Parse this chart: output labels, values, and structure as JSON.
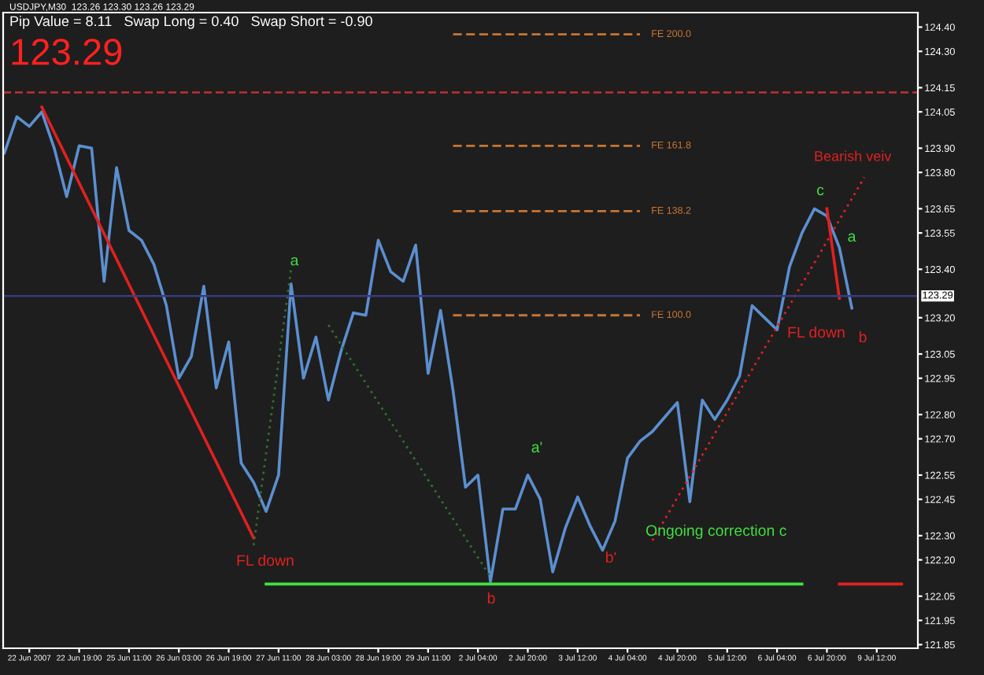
{
  "chart_data": {
    "type": "line",
    "title": "USDJPY,M30  123.26 123.30 123.26 123.29",
    "subtitle": "Pip Value = 8.11   Swap Long = 0.40   Swap Short = -0.90",
    "categories": [
      null,
      null,
      "22 Jun 2007",
      null,
      null,
      null,
      "22 Jun 19:00",
      null,
      null,
      null,
      "25 Jun 11:00",
      null,
      null,
      null,
      "26 Jun 03:00",
      null,
      null,
      null,
      "26 Jun 19:00",
      null,
      null,
      null,
      "27 Jun 11:00",
      null,
      null,
      null,
      "28 Jun 03:00",
      null,
      null,
      null,
      "28 Jun 19:00",
      null,
      null,
      null,
      "29 Jun 11:00",
      null,
      null,
      null,
      "2 Jul 04:00",
      null,
      null,
      null,
      "2 Jul 20:00",
      null,
      null,
      null,
      "3 Jul 12:00",
      null,
      null,
      null,
      "4 Jul 04:00",
      null,
      null,
      null,
      "4 Jul 20:00",
      null,
      null,
      null,
      "5 Jul 12:00",
      null,
      null,
      null,
      "6 Jul 04:00",
      null,
      null,
      null,
      "6 Jul 20:00",
      null,
      null,
      null,
      "9 Jul 12:00",
      null,
      null
    ],
    "series": [
      {
        "color": "#5b8fd0",
        "line_style": "solid",
        "values": [
          123.88,
          124.03,
          123.99,
          124.05,
          123.9,
          123.7,
          123.91,
          123.9,
          123.35,
          123.82,
          123.56,
          123.52,
          123.42,
          123.25,
          122.95,
          123.04,
          123.33,
          122.91,
          123.1,
          122.6,
          122.52,
          122.4,
          122.55,
          123.34,
          122.95,
          123.12,
          122.86,
          123.06,
          123.22,
          123.21,
          123.52,
          123.39,
          123.35,
          123.5,
          122.97,
          123.23,
          122.9,
          122.5,
          122.55,
          122.11,
          122.41,
          122.41,
          122.55,
          122.45,
          122.15,
          122.33,
          122.46,
          122.34,
          122.24,
          122.36,
          122.62,
          122.69,
          122.73,
          122.79,
          122.85,
          122.44,
          122.86,
          122.78,
          122.86,
          122.96,
          123.25,
          123.2,
          123.15,
          123.41,
          123.55,
          123.65,
          123.62,
          123.49,
          123.24,
          null,
          null,
          null,
          null
        ]
      },
      {
        "color": "#e02020",
        "line_style": "solid",
        "values": [
          null,
          null,
          null,
          124.07,
          null,
          null,
          null,
          null,
          null,
          null,
          null,
          null,
          null,
          null,
          null,
          null,
          null,
          null,
          null,
          null,
          122.29,
          null,
          null,
          null,
          null,
          null,
          null,
          null,
          null,
          null,
          null,
          null,
          null,
          null,
          null,
          null,
          null,
          null,
          null,
          null,
          null,
          null,
          null,
          null,
          null,
          null,
          null,
          null,
          null,
          null,
          null,
          null,
          null,
          null,
          null,
          null,
          null,
          null,
          null,
          null,
          null,
          null,
          null,
          null,
          null,
          null,
          null,
          null,
          null,
          null,
          null,
          null,
          null
        ]
      },
      {
        "color": "#e02020",
        "line_style": "solid",
        "values": [
          null,
          null,
          null,
          null,
          null,
          null,
          null,
          null,
          null,
          null,
          null,
          null,
          null,
          null,
          null,
          null,
          null,
          null,
          null,
          null,
          null,
          null,
          null,
          null,
          null,
          null,
          null,
          null,
          null,
          null,
          null,
          null,
          null,
          null,
          null,
          null,
          null,
          null,
          null,
          null,
          null,
          null,
          null,
          null,
          null,
          null,
          null,
          null,
          null,
          null,
          null,
          null,
          null,
          null,
          null,
          null,
          null,
          null,
          null,
          null,
          null,
          null,
          null,
          null,
          null,
          null,
          123.65,
          123.28,
          null,
          null,
          null,
          null,
          null
        ]
      },
      {
        "color": "#40e040",
        "line_style": "solid",
        "values": [
          null,
          null,
          null,
          null,
          null,
          null,
          null,
          null,
          null,
          null,
          null,
          null,
          null,
          null,
          null,
          null,
          null,
          null,
          null,
          null,
          null,
          122.1,
          122.1,
          122.1,
          122.1,
          122.1,
          122.1,
          122.1,
          122.1,
          122.1,
          122.1,
          122.1,
          122.1,
          122.1,
          122.1,
          122.1,
          122.1,
          122.1,
          122.1,
          122.1,
          122.1,
          122.1,
          122.1,
          122.1,
          122.1,
          122.1,
          122.1,
          122.1,
          122.1,
          122.1,
          122.1,
          122.1,
          122.1,
          122.1,
          122.1,
          122.1,
          122.1,
          122.1,
          122.1,
          122.1,
          122.1,
          122.1,
          122.1,
          122.1,
          122.1,
          null,
          null,
          null,
          null,
          null,
          null,
          null,
          null
        ]
      },
      {
        "color": "#e02020",
        "line_style": "solid",
        "values": [
          null,
          null,
          null,
          null,
          null,
          null,
          null,
          null,
          null,
          null,
          null,
          null,
          null,
          null,
          null,
          null,
          null,
          null,
          null,
          null,
          null,
          null,
          null,
          null,
          null,
          null,
          null,
          null,
          null,
          null,
          null,
          null,
          null,
          null,
          null,
          null,
          null,
          null,
          null,
          null,
          null,
          null,
          null,
          null,
          null,
          null,
          null,
          null,
          null,
          null,
          null,
          null,
          null,
          null,
          null,
          null,
          null,
          null,
          null,
          null,
          null,
          null,
          null,
          null,
          null,
          null,
          null,
          122.1,
          122.1,
          122.1,
          122.1,
          122.1,
          122.1
        ]
      },
      {
        "color": "#e02020",
        "line_style": "dotted",
        "values": [
          null,
          null,
          null,
          null,
          null,
          null,
          null,
          null,
          null,
          null,
          null,
          null,
          null,
          null,
          null,
          null,
          null,
          null,
          null,
          null,
          null,
          null,
          null,
          null,
          null,
          null,
          null,
          null,
          null,
          null,
          null,
          null,
          null,
          null,
          null,
          null,
          null,
          null,
          null,
          null,
          null,
          null,
          null,
          null,
          null,
          null,
          null,
          null,
          null,
          null,
          null,
          null,
          122.28,
          null,
          null,
          null,
          null,
          null,
          null,
          null,
          null,
          null,
          null,
          null,
          null,
          null,
          null,
          null,
          null,
          123.78,
          null,
          null,
          null
        ]
      },
      {
        "color": "#2f6f2f",
        "line_style": "dotted",
        "values": [
          null,
          null,
          null,
          null,
          null,
          null,
          null,
          null,
          null,
          null,
          null,
          null,
          null,
          null,
          null,
          null,
          null,
          null,
          null,
          null,
          122.26,
          null,
          null,
          123.4,
          null,
          null,
          null,
          null,
          null,
          null,
          null,
          null,
          null,
          null,
          null,
          null,
          null,
          null,
          null,
          null,
          null,
          null,
          null,
          null,
          null,
          null,
          null,
          null,
          null,
          null,
          null,
          null,
          null,
          null,
          null,
          null,
          null,
          null,
          null,
          null,
          null,
          null,
          null,
          null,
          null,
          null,
          null,
          null,
          null,
          null,
          null,
          null,
          null
        ]
      },
      {
        "color": "#2f6f2f",
        "line_style": "dotted",
        "values": [
          null,
          null,
          null,
          null,
          null,
          null,
          null,
          null,
          null,
          null,
          null,
          null,
          null,
          null,
          null,
          null,
          null,
          null,
          null,
          null,
          null,
          null,
          null,
          null,
          null,
          null,
          123.17,
          null,
          null,
          null,
          null,
          null,
          null,
          null,
          null,
          null,
          null,
          null,
          null,
          122.13,
          null,
          null,
          null,
          null,
          null,
          null,
          null,
          null,
          null,
          null,
          null,
          null,
          null,
          null,
          null,
          null,
          null,
          null,
          null,
          null,
          null,
          null,
          null,
          null,
          null,
          null,
          null,
          null,
          null,
          null,
          null,
          null,
          null
        ]
      },
      {
        "name": "FE 200.0",
        "color": "#c87533",
        "line_style": "dashed",
        "values": [
          null,
          null,
          null,
          null,
          null,
          null,
          null,
          null,
          null,
          null,
          null,
          null,
          null,
          null,
          null,
          null,
          null,
          null,
          null,
          null,
          null,
          null,
          null,
          null,
          null,
          null,
          null,
          null,
          null,
          null,
          null,
          null,
          null,
          null,
          null,
          null,
          124.37,
          124.37,
          124.37,
          124.37,
          124.37,
          124.37,
          124.37,
          124.37,
          124.37,
          124.37,
          124.37,
          124.37,
          124.37,
          124.37,
          124.37,
          124.37,
          null,
          null,
          null,
          null,
          null,
          null,
          null,
          null,
          null,
          null,
          null,
          null,
          null,
          null,
          null,
          null,
          null,
          null,
          null,
          null,
          null
        ]
      },
      {
        "name": "FE 161.8",
        "color": "#c87533",
        "line_style": "dashed",
        "values": [
          null,
          null,
          null,
          null,
          null,
          null,
          null,
          null,
          null,
          null,
          null,
          null,
          null,
          null,
          null,
          null,
          null,
          null,
          null,
          null,
          null,
          null,
          null,
          null,
          null,
          null,
          null,
          null,
          null,
          null,
          null,
          null,
          null,
          null,
          null,
          null,
          123.91,
          123.91,
          123.91,
          123.91,
          123.91,
          123.91,
          123.91,
          123.91,
          123.91,
          123.91,
          123.91,
          123.91,
          123.91,
          123.91,
          123.91,
          123.91,
          null,
          null,
          null,
          null,
          null,
          null,
          null,
          null,
          null,
          null,
          null,
          null,
          null,
          null,
          null,
          null,
          null,
          null,
          null,
          null,
          null
        ]
      },
      {
        "name": "FE 138.2",
        "color": "#c87533",
        "line_style": "dashed",
        "values": [
          null,
          null,
          null,
          null,
          null,
          null,
          null,
          null,
          null,
          null,
          null,
          null,
          null,
          null,
          null,
          null,
          null,
          null,
          null,
          null,
          null,
          null,
          null,
          null,
          null,
          null,
          null,
          null,
          null,
          null,
          null,
          null,
          null,
          null,
          null,
          null,
          123.64,
          123.64,
          123.64,
          123.64,
          123.64,
          123.64,
          123.64,
          123.64,
          123.64,
          123.64,
          123.64,
          123.64,
          123.64,
          123.64,
          123.64,
          123.64,
          null,
          null,
          null,
          null,
          null,
          null,
          null,
          null,
          null,
          null,
          null,
          null,
          null,
          null,
          null,
          null,
          null,
          null,
          null,
          null,
          null
        ]
      },
      {
        "name": "FE 100.0",
        "color": "#c87533",
        "line_style": "dashed",
        "values": [
          null,
          null,
          null,
          null,
          null,
          null,
          null,
          null,
          null,
          null,
          null,
          null,
          null,
          null,
          null,
          null,
          null,
          null,
          null,
          null,
          null,
          null,
          null,
          null,
          null,
          null,
          null,
          null,
          null,
          null,
          null,
          null,
          null,
          null,
          null,
          null,
          123.21,
          123.21,
          123.21,
          123.21,
          123.21,
          123.21,
          123.21,
          123.21,
          123.21,
          123.21,
          123.21,
          123.21,
          123.21,
          123.21,
          123.21,
          123.21,
          null,
          null,
          null,
          null,
          null,
          null,
          null,
          null,
          null,
          null,
          null,
          null,
          null,
          null,
          null,
          null,
          null,
          null,
          null,
          null,
          null
        ]
      }
    ],
    "ref_lines": [
      {
        "axis": "y",
        "value": 123.29,
        "label": "123.29",
        "color": "#3a3a80",
        "line_style": "solid"
      },
      {
        "axis": "y",
        "value": 124.13,
        "label": null,
        "color": "#c03030",
        "line_style": "dashed"
      }
    ],
    "annotations": [
      "123.29",
      {
        "text": "a",
        "y": 123.36
      },
      "FL down",
      "b",
      "a'",
      "b'",
      "Ongoing correction c",
      {
        "text": "c",
        "y": 123.65
      },
      "a",
      "FL down",
      "b",
      "Bearish veiv"
    ],
    "ylim": [
      121.835,
      124.46
    ],
    "yticks": [
      121.85,
      121.95,
      122.05,
      {
        "value": 122.2,
        "label": "122.20"
      },
      {
        "value": 122.3,
        "label": "122.30"
      },
      122.45,
      122.55,
      {
        "value": 122.7,
        "label": "122.70"
      },
      {
        "value": 122.8,
        "label": "122.80"
      },
      122.95,
      123.05,
      {
        "value": 123.2,
        "label": "123.20"
      },
      {
        "value": 123.4,
        "label": "123.40"
      },
      123.55,
      123.65,
      {
        "value": 123.8,
        "label": "123.80"
      },
      {
        "value": 123.9,
        "label": "123.90"
      },
      124.05,
      124.15,
      {
        "value": 124.3,
        "label": "124.30"
      },
      {
        "value": 124.4,
        "label": "124.40"
      }
    ],
    "grid": false,
    "legend": false
  }
}
